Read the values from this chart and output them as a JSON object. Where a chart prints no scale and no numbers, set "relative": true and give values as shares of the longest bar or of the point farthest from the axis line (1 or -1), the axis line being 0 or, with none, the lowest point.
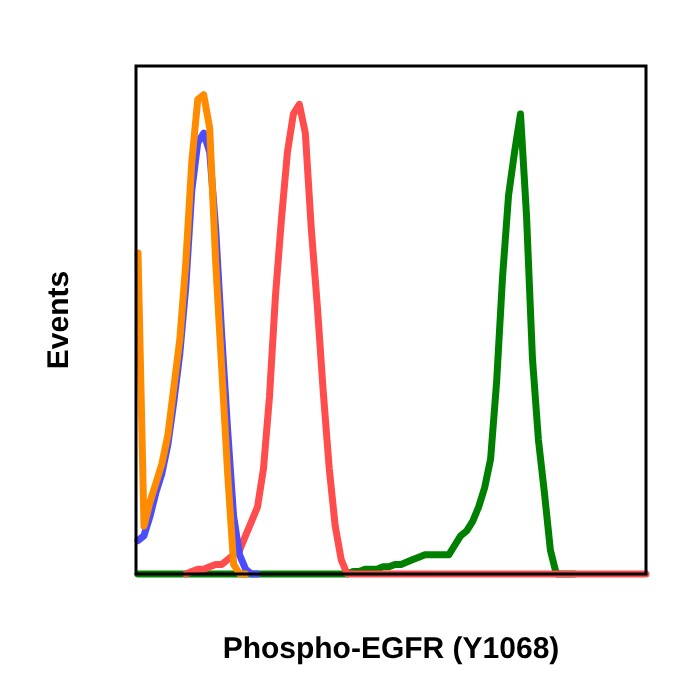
{
  "chart_data": {
    "type": "line",
    "relative": true,
    "xlabel": "Phospho-EGFR (Y1068)",
    "ylabel": "Events",
    "line_style": "solid",
    "categories": [
      null,
      null,
      null,
      null,
      null,
      null,
      null,
      null,
      null,
      null,
      null,
      null,
      null,
      null,
      null,
      null,
      null,
      null,
      null,
      null,
      null,
      null,
      null,
      null,
      null,
      null,
      null,
      null,
      null,
      null,
      null,
      null,
      null,
      null,
      null,
      null,
      null,
      null,
      null,
      null,
      null,
      null,
      null,
      null,
      null,
      null,
      null,
      null,
      null,
      null,
      null,
      null,
      null,
      null,
      null,
      null,
      null,
      null,
      null,
      null,
      null,
      null,
      null,
      null,
      null,
      null,
      null,
      null,
      null,
      null,
      null,
      null,
      null,
      null,
      null,
      null,
      null,
      null,
      null,
      null,
      null,
      null,
      null,
      null,
      null,
      null
    ],
    "series": [
      {
        "color": "#008000",
        "values": [
          0,
          0,
          0,
          0,
          0,
          0,
          0,
          0,
          0,
          0,
          0,
          0,
          0,
          0,
          0,
          0,
          0,
          0,
          0,
          0,
          0,
          0,
          0,
          0,
          0,
          0,
          0,
          0,
          0,
          0,
          0,
          0,
          0,
          0,
          0,
          0,
          0.005,
          0.005,
          0.01,
          0.01,
          0.01,
          0.015,
          0.015,
          0.02,
          0.02,
          0.025,
          0.03,
          0.035,
          0.04,
          0.04,
          0.04,
          0.04,
          0.04,
          0.06,
          0.08,
          0.09,
          0.11,
          0.14,
          0.18,
          0.24,
          0.4,
          0.62,
          0.79,
          0.88,
          0.96,
          0.75,
          0.45,
          0.28,
          0.17,
          0.05,
          0,
          0,
          0,
          0,
          null,
          null,
          null,
          null,
          null,
          null,
          null,
          null,
          null,
          null,
          null,
          null
        ]
      },
      {
        "color": "#ff4c4c",
        "values": [
          null,
          null,
          null,
          null,
          null,
          null,
          null,
          null,
          0,
          0.005,
          0.01,
          0.01,
          0.015,
          0.02,
          0.02,
          0.03,
          0.04,
          0.05,
          0.08,
          0.11,
          0.14,
          0.22,
          0.37,
          0.58,
          0.74,
          0.88,
          0.96,
          0.98,
          0.92,
          0.72,
          0.56,
          0.38,
          0.22,
          0.1,
          0.03,
          0,
          0,
          0,
          0,
          0,
          0,
          0,
          0,
          0,
          0,
          0,
          0,
          0,
          0,
          0,
          0,
          0,
          0,
          0,
          0,
          0,
          0,
          0,
          0,
          0,
          0,
          0,
          0,
          0,
          0,
          0,
          0,
          0,
          0,
          0,
          0,
          0,
          0,
          0,
          0,
          0,
          0,
          0,
          0,
          0,
          0,
          0,
          0,
          0,
          0,
          0
        ]
      },
      {
        "color": "#4c4cff",
        "values": [
          0.07,
          0.08,
          0.12,
          0.17,
          0.21,
          0.27,
          0.36,
          0.46,
          0.6,
          0.8,
          0.9,
          0.92,
          0.88,
          0.72,
          0.5,
          0.3,
          0.12,
          0.04,
          0.01,
          0,
          0,
          null,
          null,
          null,
          null,
          null,
          null,
          null,
          null,
          null,
          null,
          null,
          null,
          null,
          null,
          null,
          null,
          null,
          null,
          null,
          null,
          null,
          null,
          null,
          null,
          null,
          null,
          null,
          null,
          null,
          null,
          null,
          null,
          null,
          null,
          null,
          null,
          null,
          null,
          null,
          null,
          null,
          null,
          null,
          null,
          null,
          null,
          null,
          null,
          null,
          null,
          null,
          null,
          null,
          null,
          null,
          null,
          null,
          null,
          null,
          null,
          null,
          null,
          null,
          null,
          null
        ]
      },
      {
        "color": "#ff8c00",
        "values": [
          0.67,
          0.1,
          0.15,
          0.19,
          0.23,
          0.29,
          0.39,
          0.49,
          0.65,
          0.86,
          0.99,
          1.0,
          0.93,
          0.65,
          0.43,
          0.21,
          0.02,
          0,
          0,
          null,
          null,
          null,
          null,
          null,
          null,
          null,
          null,
          null,
          null,
          null,
          null,
          null,
          null,
          null,
          null,
          null,
          null,
          null,
          null,
          null,
          null,
          null,
          null,
          null,
          null,
          null,
          null,
          null,
          null,
          null,
          null,
          null,
          null,
          null,
          null,
          null,
          null,
          null,
          null,
          null,
          null,
          null,
          null,
          null,
          null,
          null,
          null,
          null,
          null,
          null,
          null,
          null,
          null,
          null,
          null,
          null,
          null,
          null,
          null,
          null,
          null,
          null,
          null,
          null,
          null,
          null
        ]
      }
    ]
  }
}
